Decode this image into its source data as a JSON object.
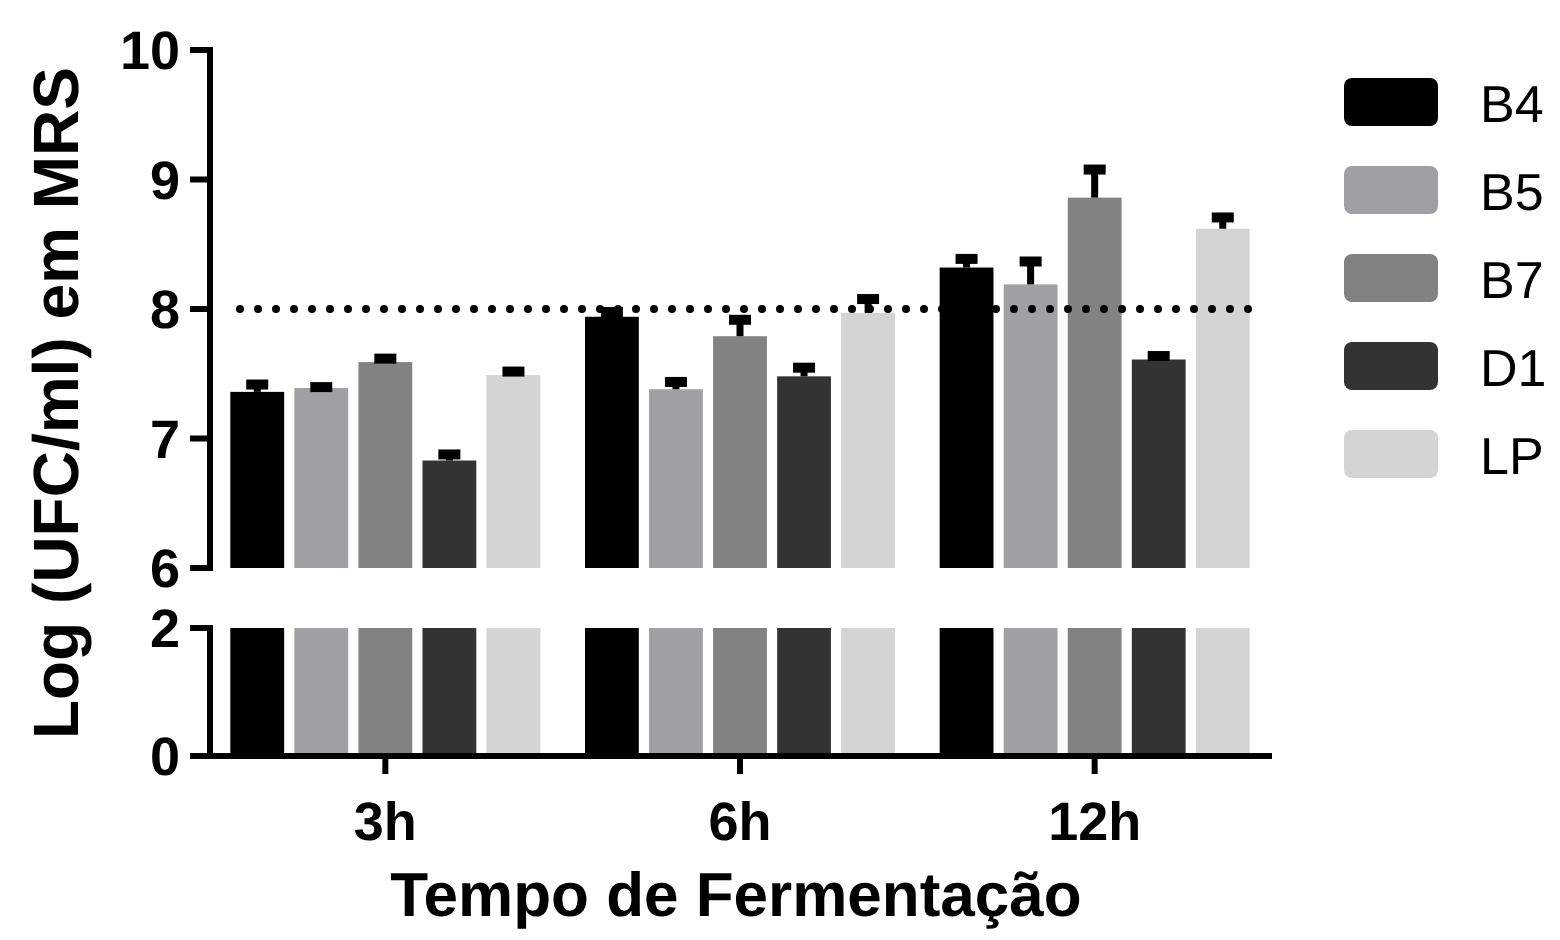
{
  "chart_data": [
    {
      "type": "bar",
      "categories": [
        null,
        null,
        null
      ],
      "ylabel": "Log (UFC/ml) em MRS",
      "ylim": [
        6,
        10
      ],
      "yticks": [
        6,
        7,
        8,
        9,
        10
      ],
      "tick_labels": "y",
      "legend": "right",
      "ref_lines": [
        {
          "axis": "y",
          "value": 8,
          "line_style": "dotted"
        }
      ],
      "series": [
        {
          "name": "B4",
          "color": "#000000",
          "values": [
            7.36,
            7.94,
            8.32
          ],
          "errors": [
            [
              7.36,
              7.44
            ],
            [
              7.94,
              8.0
            ],
            [
              8.32,
              8.41
            ]
          ]
        },
        {
          "name": "B5",
          "color": "#a0a0a4",
          "values": [
            7.39,
            7.38,
            8.19
          ],
          "errors": [
            [
              7.39,
              7.42
            ],
            [
              7.38,
              7.46
            ],
            [
              8.19,
              8.39
            ]
          ]
        },
        {
          "name": "B7",
          "color": "#828282",
          "values": [
            7.59,
            7.79,
            8.86
          ],
          "errors": [
            [
              7.59,
              7.64
            ],
            [
              7.79,
              7.94
            ],
            [
              8.86,
              9.1
            ]
          ]
        },
        {
          "name": "D1",
          "color": "#333333",
          "values": [
            6.83,
            7.48,
            7.61
          ],
          "errors": [
            [
              6.83,
              6.9
            ],
            [
              7.48,
              7.57
            ],
            [
              7.61,
              7.66
            ]
          ]
        },
        {
          "name": "LP",
          "color": "#d4d4d4",
          "values": [
            7.49,
            7.97,
            8.62
          ],
          "errors": [
            [
              7.49,
              7.54
            ],
            [
              7.97,
              8.1
            ],
            [
              8.62,
              8.73
            ]
          ]
        }
      ]
    },
    {
      "type": "bar",
      "categories": [
        "3h",
        "6h",
        "12h"
      ],
      "xlabel": "Tempo de Fermentação",
      "ylim": [
        0,
        2
      ],
      "yticks": [
        0,
        2
      ],
      "series": [
        {
          "color": "#000000",
          "values": [
            2,
            2,
            2
          ]
        },
        {
          "color": "#a0a0a4",
          "values": [
            2,
            2,
            2
          ]
        },
        {
          "color": "#828282",
          "values": [
            2,
            2,
            2
          ]
        },
        {
          "color": "#333333",
          "values": [
            2,
            2,
            2
          ]
        },
        {
          "color": "#d4d4d4",
          "values": [
            2,
            2,
            2
          ]
        }
      ]
    }
  ]
}
